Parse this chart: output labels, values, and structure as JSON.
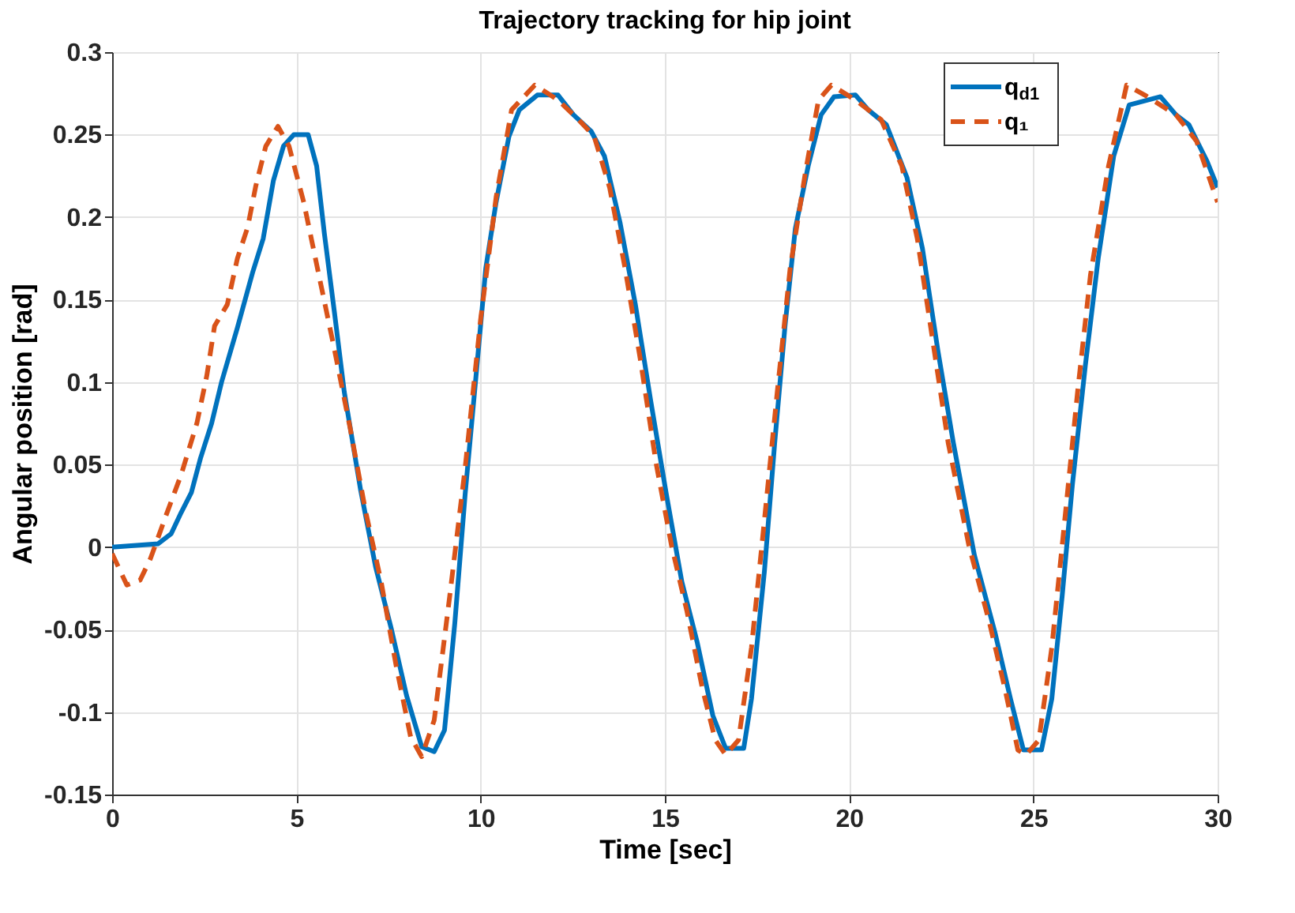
{
  "chart_data": {
    "type": "line",
    "title": "Trajectory tracking for hip joint",
    "xlabel": "Time [sec]",
    "ylabel": "Angular position [rad]",
    "xlim": [
      0,
      30
    ],
    "xticks": [
      0,
      5,
      10,
      15,
      20,
      25,
      30
    ],
    "ylim": [
      -0.15,
      0.3
    ],
    "yticks": [
      -0.15,
      -0.1,
      -0.05,
      0,
      0.05,
      0.1,
      0.15,
      0.2,
      0.25,
      0.3
    ],
    "grid": true,
    "legend": "top right",
    "marker": "none",
    "series": [
      {
        "name": "q$_{d1}$",
        "color": "#0072bd",
        "line_style": "solid",
        "x": [
          0,
          1.25,
          1.6,
          1.875,
          2.15,
          2.4,
          2.7,
          2.97,
          3.4,
          3.82,
          4.1,
          4.375,
          4.65,
          4.93,
          5.32,
          5.55,
          5.76,
          6.04,
          6.3,
          6.74,
          7.15,
          7.57,
          7.99,
          8.4,
          8.74,
          9.02,
          9.3,
          9.58,
          9.86,
          10.14,
          10.42,
          10.77,
          11.05,
          11.54,
          12.1,
          12.52,
          13.0,
          13.36,
          13.78,
          14.2,
          14.62,
          15.04,
          15.46,
          15.88,
          16.3,
          16.65,
          17.14,
          17.35,
          17.7,
          17.98,
          18.26,
          18.54,
          18.89,
          19.24,
          19.59,
          20.17,
          20.52,
          21.01,
          21.57,
          21.99,
          22.41,
          22.83,
          23.4,
          23.96,
          24.38,
          24.73,
          25.22,
          25.5,
          25.78,
          26.06,
          26.41,
          26.76,
          27.18,
          27.6,
          28.45,
          28.87,
          29.22,
          29.71,
          30
        ],
        "values": [
          0,
          0.002,
          0.008,
          0.021,
          0.033,
          0.054,
          0.075,
          0.1,
          0.133,
          0.167,
          0.187,
          0.222,
          0.243,
          0.25,
          0.25,
          0.231,
          0.19,
          0.141,
          0.094,
          0.035,
          -0.012,
          -0.049,
          -0.09,
          -0.121,
          -0.124,
          -0.111,
          -0.046,
          0.032,
          0.1,
          0.169,
          0.209,
          0.249,
          0.265,
          0.274,
          0.274,
          0.262,
          0.252,
          0.237,
          0.197,
          0.147,
          0.088,
          0.032,
          -0.021,
          -0.058,
          -0.102,
          -0.122,
          -0.122,
          -0.092,
          -0.015,
          0.063,
          0.134,
          0.193,
          0.231,
          0.262,
          0.273,
          0.274,
          0.265,
          0.256,
          0.224,
          0.181,
          0.119,
          0.063,
          -0.005,
          -0.052,
          -0.092,
          -0.123,
          -0.123,
          -0.092,
          -0.03,
          0.038,
          0.11,
          0.175,
          0.237,
          0.268,
          0.273,
          0.262,
          0.256,
          0.234,
          0.218
        ]
      },
      {
        "name": "q₁",
        "color": "#d95319",
        "line_style": "dashed",
        "x": [
          0,
          0.4,
          0.76,
          1.04,
          1.46,
          1.875,
          2.3,
          2.57,
          2.78,
          3.125,
          3.4,
          3.68,
          3.9,
          4.17,
          4.5,
          4.8,
          5.2,
          5.6,
          6.04,
          6.46,
          6.875,
          7.3,
          7.7,
          8.1,
          8.4,
          8.74,
          9.16,
          9.58,
          10.0,
          10.42,
          10.84,
          11.47,
          12.1,
          12.66,
          13.08,
          13.5,
          13.92,
          14.34,
          14.76,
          15.18,
          15.6,
          16.02,
          16.37,
          16.65,
          17.0,
          17.35,
          17.7,
          18.05,
          18.4,
          18.82,
          19.17,
          19.52,
          20.17,
          20.87,
          21.43,
          21.85,
          22.27,
          22.69,
          23.25,
          23.81,
          24.23,
          24.58,
          24.8,
          25.15,
          25.5,
          25.85,
          26.2,
          26.55,
          27.04,
          27.53,
          28.02,
          28.87,
          29.43,
          30
        ],
        "values": [
          -0.004,
          -0.023,
          -0.02,
          -0.007,
          0.019,
          0.044,
          0.075,
          0.104,
          0.134,
          0.147,
          0.175,
          0.194,
          0.219,
          0.243,
          0.255,
          0.243,
          0.209,
          0.166,
          0.119,
          0.072,
          0.022,
          -0.021,
          -0.071,
          -0.115,
          -0.127,
          -0.105,
          -0.03,
          0.048,
          0.138,
          0.212,
          0.265,
          0.28,
          0.271,
          0.259,
          0.249,
          0.218,
          0.169,
          0.113,
          0.051,
          0.001,
          -0.039,
          -0.086,
          -0.117,
          -0.126,
          -0.117,
          -0.061,
          0.016,
          0.094,
          0.169,
          0.228,
          0.271,
          0.28,
          0.271,
          0.259,
          0.231,
          0.187,
          0.125,
          0.063,
          0.001,
          -0.046,
          -0.086,
          -0.123,
          -0.126,
          -0.117,
          -0.061,
          0.016,
          0.094,
          0.165,
          0.231,
          0.28,
          0.274,
          0.262,
          0.246,
          0.209
        ]
      }
    ]
  }
}
